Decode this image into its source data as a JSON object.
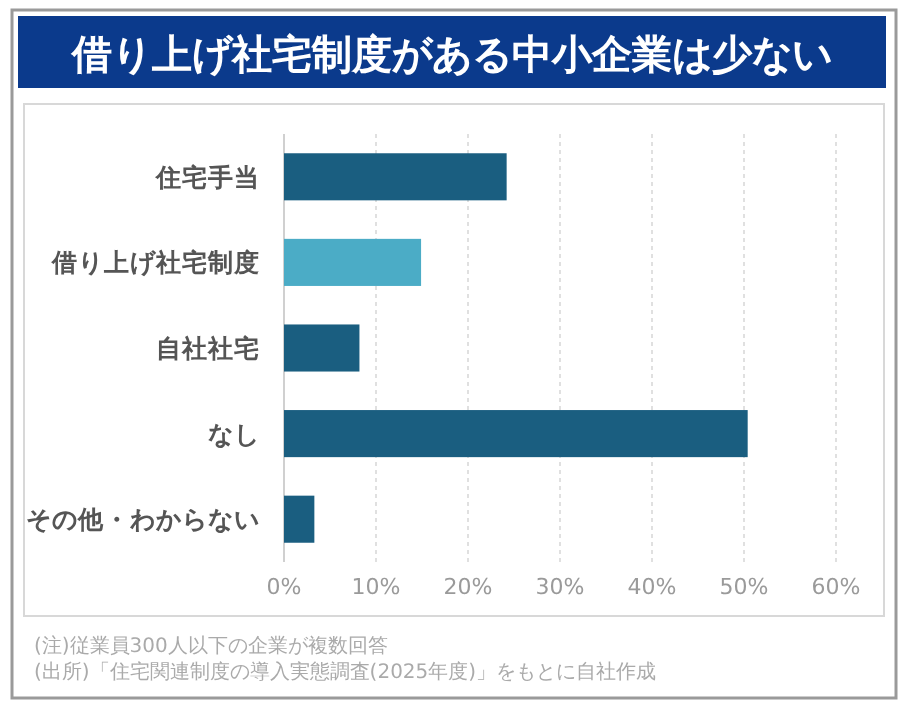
{
  "chart_data": {
    "type": "bar",
    "orientation": "horizontal",
    "title": "借り上げ社宅制度がある中小企業は少ない",
    "categories": [
      "住宅手当",
      "借り上げ社宅制度",
      "自社社宅",
      "なし",
      "その他・わからない"
    ],
    "values": [
      24.2,
      14.9,
      8.2,
      50.4,
      3.3
    ],
    "colors": [
      "#1a5e80",
      "#4bacc6",
      "#1a5e80",
      "#1a5e80",
      "#1a5e80"
    ],
    "xlim": [
      0,
      60
    ],
    "xticks": [
      {
        "value": 0,
        "label": "0%"
      },
      {
        "value": 10,
        "label": "10%"
      },
      {
        "value": 20,
        "label": "20%"
      },
      {
        "value": 30,
        "label": "30%"
      },
      {
        "value": 40,
        "label": "40%"
      },
      {
        "value": 50,
        "label": "50%"
      },
      {
        "value": 60,
        "label": "60%"
      }
    ],
    "grid": "x",
    "annotations": [
      "(注)従業員300人以下の企業が複数回答",
      "(出所)「住宅関連制度の導入実態調査(2025年度)」をもとに自社作成"
    ]
  }
}
